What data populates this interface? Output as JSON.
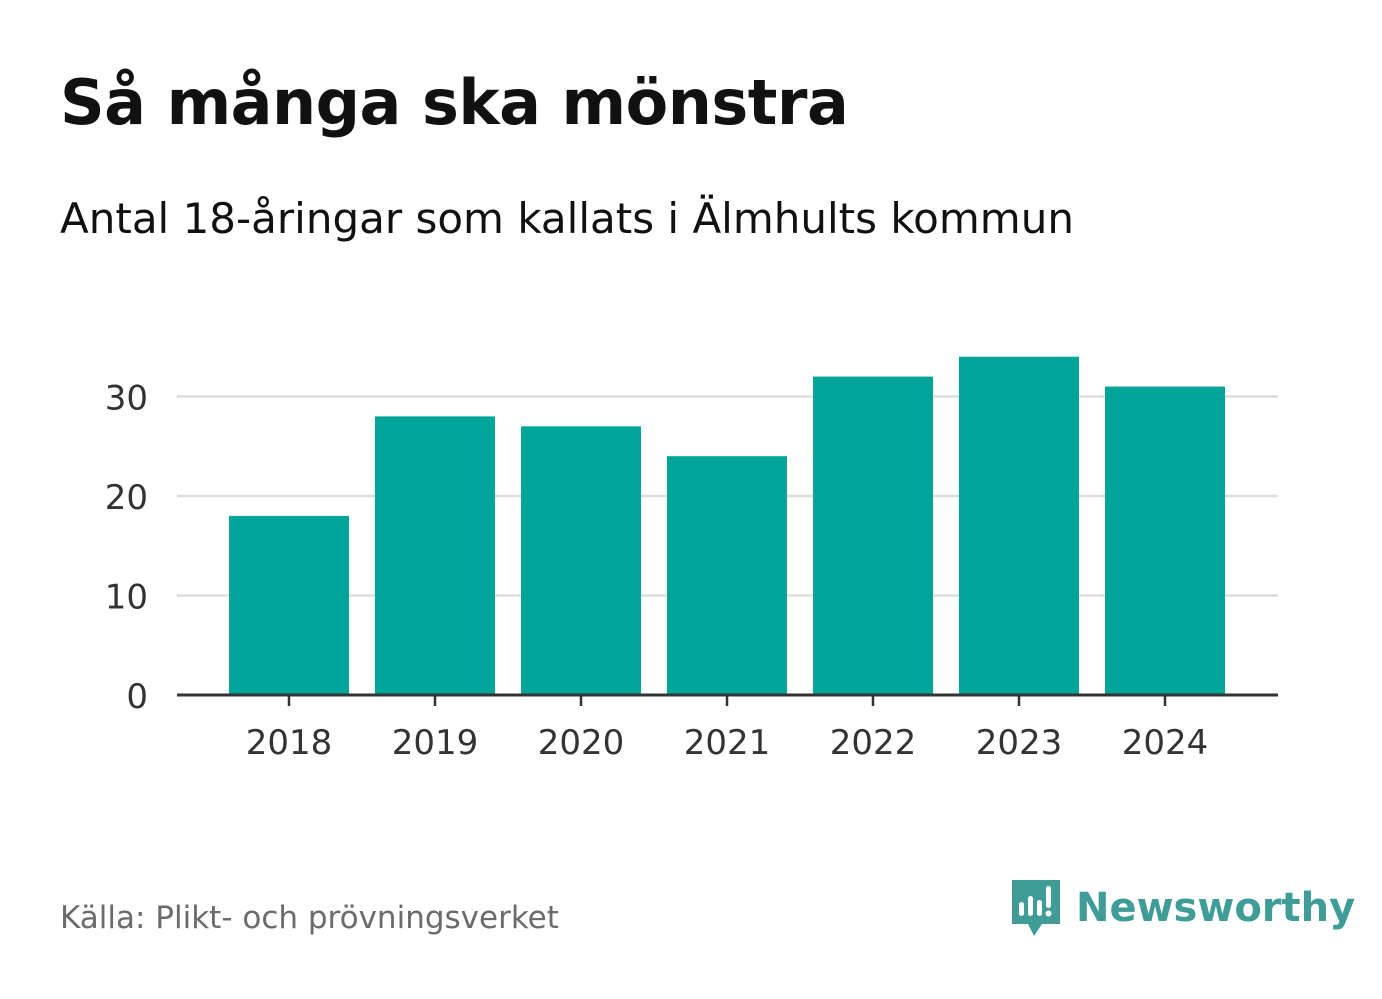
{
  "header": {
    "title": "Så många ska mönstra",
    "subtitle": "Antal 18-åringar som kallats i Älmhults kommun"
  },
  "footer": {
    "source": "Källa: Plikt- och prövningsverket",
    "brand": "Newsworthy",
    "brand_icon": "newsworthy-logo-icon"
  },
  "colors": {
    "bar": "#00a499",
    "grid": "#dddddd",
    "axis": "#333333",
    "brand": "#3f9c96"
  },
  "chart_data": {
    "type": "bar",
    "title": "Så många ska mönstra",
    "subtitle": "Antal 18-åringar som kallats i Älmhults kommun",
    "categories": [
      "2018",
      "2019",
      "2020",
      "2021",
      "2022",
      "2023",
      "2024"
    ],
    "values": [
      18,
      28,
      27,
      24,
      32,
      34,
      31
    ],
    "xlabel": "",
    "ylabel": "",
    "ylim": [
      0,
      34
    ],
    "yticks": [
      0,
      10,
      20,
      30
    ],
    "grid": true,
    "legend": "none"
  }
}
